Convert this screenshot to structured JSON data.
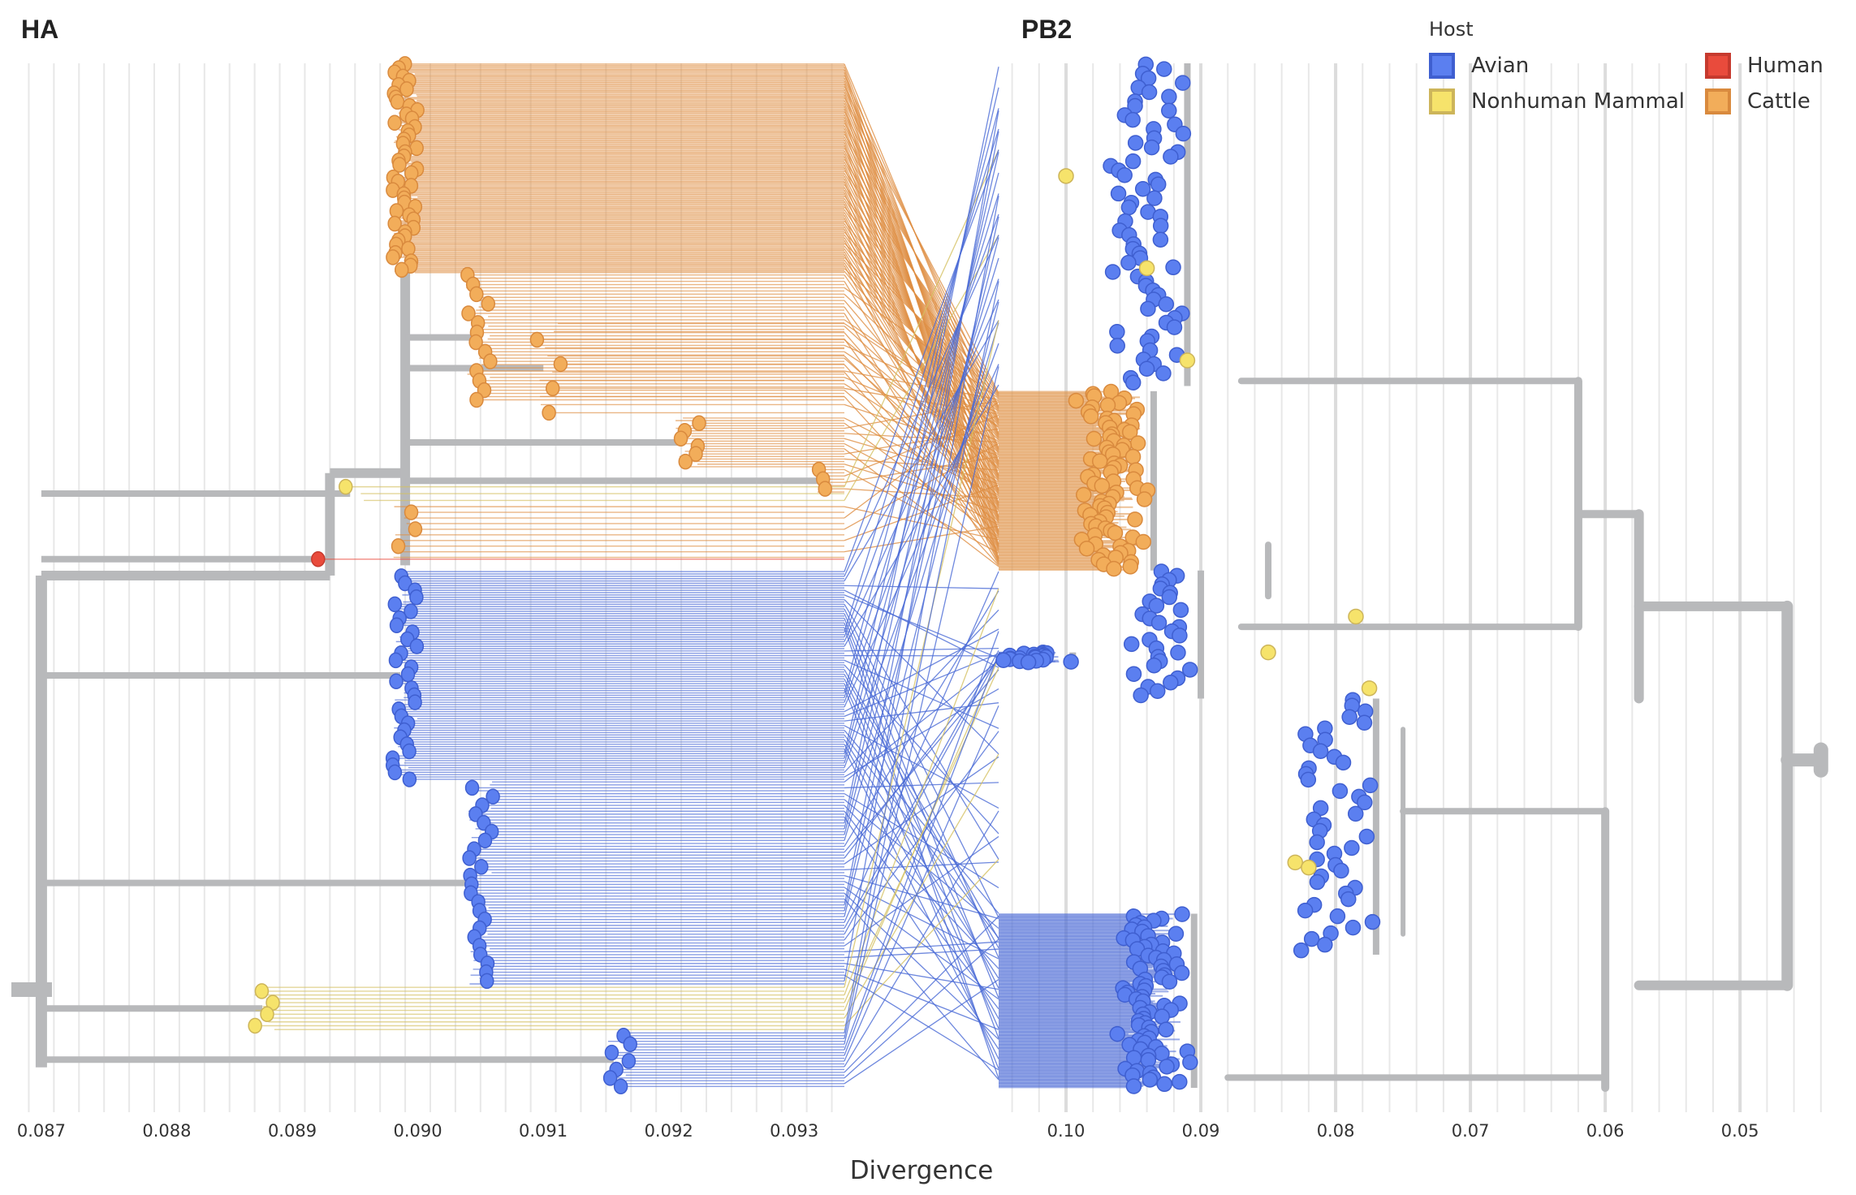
{
  "chart_data": {
    "type": "tanglegram",
    "panels": [
      {
        "id": "HA",
        "title": "HA",
        "x_axis": {
          "ticks": [
            "0.087",
            "0.088",
            "0.089",
            "0.090",
            "0.091",
            "0.092",
            "0.093"
          ],
          "tick_values": [
            0.087,
            0.088,
            0.089,
            0.09,
            0.091,
            0.092,
            0.093
          ],
          "range": [
            0.0868,
            0.0934
          ],
          "direction": "left-to-right"
        }
      },
      {
        "id": "PB2",
        "title": "PB2",
        "x_axis": {
          "ticks": [
            "0.10",
            "0.09",
            "0.08",
            "0.07",
            "0.06",
            "0.05"
          ],
          "tick_values": [
            0.1,
            0.09,
            0.08,
            0.07,
            0.06,
            0.05
          ],
          "range": [
            0.105,
            0.042
          ],
          "direction": "right-to-left"
        }
      }
    ],
    "xlabel": "Divergence",
    "grid": true,
    "legend": {
      "title": "Host",
      "placement": "top-right",
      "entries": [
        {
          "label": "Avian",
          "color": "#5b7ff0",
          "border": "#3f5fd0"
        },
        {
          "label": "Human",
          "color": "#e94b3c",
          "border": "#c63a2e"
        },
        {
          "label": "Nonhuman Mammal",
          "color": "#f6e36b",
          "border": "#cdb55a"
        },
        {
          "label": "Cattle",
          "color": "#f2ad5a",
          "border": "#d98a3e"
        }
      ]
    },
    "colors": {
      "branch": "#b8b9bb",
      "avian": "#5b7ff0",
      "avian_line": "#4a6ad6",
      "mammal": "#f6e36b",
      "mammal_line": "#d4c061",
      "human": "#e94b3c",
      "cattle": "#f2ad5a",
      "cattle_line": "#df8f43",
      "grid": "#e8e8e8",
      "grid_major": "#dcdcdc"
    },
    "ha_clades": [
      {
        "host": "cattle",
        "tip_count": 150,
        "divergence": 0.0899,
        "span": [
          0.0,
          0.205
        ]
      },
      {
        "host": "cattle",
        "tip_count": 40,
        "divergence": 0.09048,
        "span": [
          0.205,
          0.33
        ]
      },
      {
        "host": "cattle",
        "tip_count": 12,
        "divergence": 0.09104,
        "span": [
          0.25,
          0.345
        ]
      },
      {
        "host": "cattle",
        "tip_count": 20,
        "divergence": 0.09215,
        "span": [
          0.345,
          0.395
        ]
      },
      {
        "host": "cattle",
        "tip_count": 8,
        "divergence": 0.09328,
        "span": [
          0.395,
          0.42
        ]
      },
      {
        "host": "cattle",
        "tip_count": 10,
        "divergence": 0.0899,
        "span": [
          0.43,
          0.485
        ]
      },
      {
        "host": "mammal",
        "tip_count": 3,
        "divergence": 0.0895,
        "span": [
          0.41,
          0.43
        ]
      },
      {
        "host": "human",
        "tip_count": 1,
        "divergence": 0.0893,
        "span": [
          0.482,
          0.486
        ]
      },
      {
        "host": "avian",
        "tip_count": 90,
        "divergence": 0.0899,
        "span": [
          0.495,
          0.7
        ]
      },
      {
        "host": "avian",
        "tip_count": 70,
        "divergence": 0.0905,
        "span": [
          0.7,
          0.9
        ]
      },
      {
        "host": "mammal",
        "tip_count": 12,
        "divergence": 0.0888,
        "span": [
          0.9,
          0.945
        ]
      },
      {
        "host": "avian",
        "tip_count": 20,
        "divergence": 0.0916,
        "span": [
          0.945,
          1.0
        ]
      }
    ],
    "pb2_clades": [
      {
        "host": "avian",
        "tip_count": 140,
        "divergence": 0.094,
        "span": [
          0.0,
          0.315
        ]
      },
      {
        "host": "cattle",
        "tip_count": 160,
        "divergence": 0.0965,
        "span": [
          0.32,
          0.495
        ]
      },
      {
        "host": "avian",
        "tip_count": 60,
        "divergence": 0.093,
        "span": [
          0.495,
          0.62
        ]
      },
      {
        "host": "avian",
        "tip_count": 40,
        "divergence": 0.1025,
        "span": [
          0.575,
          0.585
        ]
      },
      {
        "host": "avian",
        "tip_count": 90,
        "divergence": 0.08,
        "span": [
          0.62,
          0.87
        ]
      },
      {
        "host": "avian",
        "tip_count": 160,
        "divergence": 0.0935,
        "span": [
          0.83,
          1.0
        ]
      }
    ]
  }
}
